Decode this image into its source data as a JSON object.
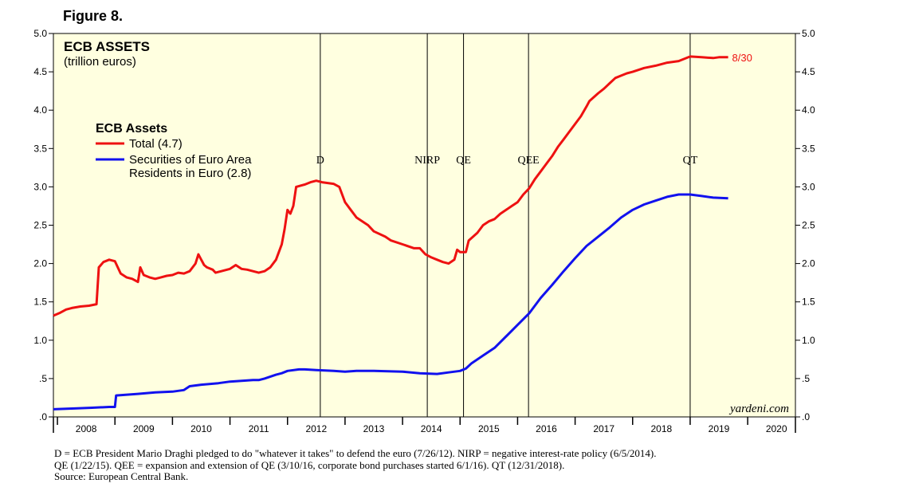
{
  "figure_label": "Figure 8.",
  "chart_data": {
    "type": "line",
    "title": "ECB ASSETS",
    "subtitle": "(trillion euros)",
    "legend_title": "ECB Assets",
    "legend_position": "upper-left",
    "xlabel": "",
    "ylabel": "",
    "ylim": [
      0,
      5.0
    ],
    "xlim": [
      2007.93,
      2020.83
    ],
    "y_ticks": [
      0,
      0.5,
      1.0,
      1.5,
      2.0,
      2.5,
      3.0,
      3.5,
      4.0,
      4.5,
      5.0
    ],
    "y_tick_labels": [
      ".0",
      ".5",
      "1.0",
      "1.5",
      "2.0",
      "2.5",
      "3.0",
      "3.5",
      "4.0",
      "4.5",
      "5.0"
    ],
    "x_tick_labels": [
      "2008",
      "2009",
      "2010",
      "2011",
      "2012",
      "2013",
      "2014",
      "2015",
      "2016",
      "2017",
      "2018",
      "2019",
      "2020"
    ],
    "background": "#ffffe0",
    "grid": false,
    "series": [
      {
        "name": "Total (4.7)",
        "color": "#ee1111",
        "end_label": "8/30",
        "points": [
          [
            2007.93,
            1.32
          ],
          [
            2008.05,
            1.36
          ],
          [
            2008.15,
            1.4
          ],
          [
            2008.25,
            1.42
          ],
          [
            2008.4,
            1.44
          ],
          [
            2008.55,
            1.45
          ],
          [
            2008.68,
            1.47
          ],
          [
            2008.72,
            1.95
          ],
          [
            2008.8,
            2.02
          ],
          [
            2008.9,
            2.05
          ],
          [
            2009.0,
            2.03
          ],
          [
            2009.1,
            1.87
          ],
          [
            2009.2,
            1.82
          ],
          [
            2009.3,
            1.8
          ],
          [
            2009.4,
            1.76
          ],
          [
            2009.44,
            1.95
          ],
          [
            2009.5,
            1.85
          ],
          [
            2009.6,
            1.82
          ],
          [
            2009.7,
            1.8
          ],
          [
            2009.8,
            1.82
          ],
          [
            2009.9,
            1.84
          ],
          [
            2010.0,
            1.85
          ],
          [
            2010.1,
            1.88
          ],
          [
            2010.2,
            1.87
          ],
          [
            2010.3,
            1.9
          ],
          [
            2010.4,
            2.0
          ],
          [
            2010.45,
            2.12
          ],
          [
            2010.5,
            2.05
          ],
          [
            2010.55,
            1.98
          ],
          [
            2010.6,
            1.95
          ],
          [
            2010.7,
            1.92
          ],
          [
            2010.75,
            1.88
          ],
          [
            2010.85,
            1.9
          ],
          [
            2011.0,
            1.93
          ],
          [
            2011.1,
            1.98
          ],
          [
            2011.2,
            1.93
          ],
          [
            2011.3,
            1.92
          ],
          [
            2011.4,
            1.9
          ],
          [
            2011.5,
            1.88
          ],
          [
            2011.6,
            1.9
          ],
          [
            2011.7,
            1.95
          ],
          [
            2011.8,
            2.05
          ],
          [
            2011.85,
            2.15
          ],
          [
            2011.9,
            2.25
          ],
          [
            2011.95,
            2.45
          ],
          [
            2012.0,
            2.7
          ],
          [
            2012.05,
            2.65
          ],
          [
            2012.1,
            2.75
          ],
          [
            2012.15,
            3.0
          ],
          [
            2012.3,
            3.03
          ],
          [
            2012.4,
            3.06
          ],
          [
            2012.5,
            3.08
          ],
          [
            2012.6,
            3.06
          ],
          [
            2012.8,
            3.04
          ],
          [
            2012.9,
            3.0
          ],
          [
            2013.0,
            2.8
          ],
          [
            2013.1,
            2.7
          ],
          [
            2013.2,
            2.6
          ],
          [
            2013.4,
            2.5
          ],
          [
            2013.5,
            2.42
          ],
          [
            2013.7,
            2.35
          ],
          [
            2013.8,
            2.3
          ],
          [
            2014.0,
            2.25
          ],
          [
            2014.2,
            2.2
          ],
          [
            2014.3,
            2.2
          ],
          [
            2014.4,
            2.12
          ],
          [
            2014.5,
            2.08
          ],
          [
            2014.6,
            2.05
          ],
          [
            2014.7,
            2.02
          ],
          [
            2014.8,
            2.0
          ],
          [
            2014.9,
            2.05
          ],
          [
            2014.95,
            2.18
          ],
          [
            2015.0,
            2.15
          ],
          [
            2015.1,
            2.15
          ],
          [
            2015.15,
            2.3
          ],
          [
            2015.3,
            2.4
          ],
          [
            2015.4,
            2.5
          ],
          [
            2015.5,
            2.55
          ],
          [
            2015.6,
            2.58
          ],
          [
            2015.7,
            2.65
          ],
          [
            2015.8,
            2.7
          ],
          [
            2015.9,
            2.75
          ],
          [
            2016.0,
            2.8
          ],
          [
            2016.1,
            2.9
          ],
          [
            2016.2,
            2.98
          ],
          [
            2016.3,
            3.1
          ],
          [
            2016.4,
            3.2
          ],
          [
            2016.5,
            3.3
          ],
          [
            2016.6,
            3.4
          ],
          [
            2016.7,
            3.52
          ],
          [
            2016.8,
            3.62
          ],
          [
            2016.9,
            3.72
          ],
          [
            2017.0,
            3.82
          ],
          [
            2017.1,
            3.92
          ],
          [
            2017.2,
            4.05
          ],
          [
            2017.25,
            4.12
          ],
          [
            2017.4,
            4.22
          ],
          [
            2017.5,
            4.28
          ],
          [
            2017.6,
            4.35
          ],
          [
            2017.7,
            4.42
          ],
          [
            2017.8,
            4.45
          ],
          [
            2017.9,
            4.48
          ],
          [
            2018.0,
            4.5
          ],
          [
            2018.2,
            4.55
          ],
          [
            2018.4,
            4.58
          ],
          [
            2018.6,
            4.62
          ],
          [
            2018.8,
            4.64
          ],
          [
            2019.0,
            4.7
          ],
          [
            2019.2,
            4.69
          ],
          [
            2019.4,
            4.68
          ],
          [
            2019.5,
            4.69
          ],
          [
            2019.66,
            4.69
          ]
        ]
      },
      {
        "name": "Securities of Euro Area Residents in Euro (2.8)",
        "label_lines": [
          "Securities of Euro Area",
          "Residents in Euro (2.8)"
        ],
        "color": "#1111ee",
        "points": [
          [
            2007.93,
            0.1
          ],
          [
            2008.3,
            0.11
          ],
          [
            2008.6,
            0.12
          ],
          [
            2008.9,
            0.13
          ],
          [
            2009.0,
            0.13
          ],
          [
            2009.02,
            0.28
          ],
          [
            2009.4,
            0.3
          ],
          [
            2009.7,
            0.32
          ],
          [
            2010.0,
            0.33
          ],
          [
            2010.2,
            0.35
          ],
          [
            2010.3,
            0.4
          ],
          [
            2010.5,
            0.42
          ],
          [
            2010.8,
            0.44
          ],
          [
            2011.0,
            0.46
          ],
          [
            2011.2,
            0.47
          ],
          [
            2011.4,
            0.48
          ],
          [
            2011.5,
            0.48
          ],
          [
            2011.6,
            0.5
          ],
          [
            2011.8,
            0.55
          ],
          [
            2011.9,
            0.57
          ],
          [
            2012.0,
            0.6
          ],
          [
            2012.2,
            0.62
          ],
          [
            2012.3,
            0.62
          ],
          [
            2012.5,
            0.61
          ],
          [
            2012.8,
            0.6
          ],
          [
            2013.0,
            0.59
          ],
          [
            2013.2,
            0.6
          ],
          [
            2013.5,
            0.6
          ],
          [
            2014.0,
            0.59
          ],
          [
            2014.3,
            0.57
          ],
          [
            2014.6,
            0.56
          ],
          [
            2014.8,
            0.58
          ],
          [
            2015.0,
            0.6
          ],
          [
            2015.1,
            0.63
          ],
          [
            2015.2,
            0.7
          ],
          [
            2015.4,
            0.8
          ],
          [
            2015.6,
            0.9
          ],
          [
            2015.8,
            1.05
          ],
          [
            2016.0,
            1.2
          ],
          [
            2016.2,
            1.35
          ],
          [
            2016.4,
            1.55
          ],
          [
            2016.6,
            1.72
          ],
          [
            2016.8,
            1.9
          ],
          [
            2017.0,
            2.07
          ],
          [
            2017.2,
            2.23
          ],
          [
            2017.4,
            2.35
          ],
          [
            2017.6,
            2.47
          ],
          [
            2017.8,
            2.6
          ],
          [
            2018.0,
            2.7
          ],
          [
            2018.2,
            2.77
          ],
          [
            2018.4,
            2.82
          ],
          [
            2018.6,
            2.87
          ],
          [
            2018.8,
            2.9
          ],
          [
            2019.0,
            2.9
          ],
          [
            2019.2,
            2.88
          ],
          [
            2019.4,
            2.86
          ],
          [
            2019.66,
            2.85
          ]
        ]
      }
    ],
    "events": [
      {
        "label": "D",
        "x": 2012.57
      },
      {
        "label": "NIRP",
        "x": 2014.43
      },
      {
        "label": "QE",
        "x": 2015.06
      },
      {
        "label": "QEE",
        "x": 2016.19
      },
      {
        "label": "QT",
        "x": 2019.0
      }
    ],
    "watermark": "yardeni.com"
  },
  "notes": [
    "D = ECB President Mario Draghi pledged to do \"whatever it takes\" to defend the euro (7/26/12). NIRP = negative interest-rate policy (6/5/2014).",
    "QE (1/22/15). QEE = expansion and extension of QE (3/10/16, corporate bond purchases started 6/1/16). QT (12/31/2018).",
    "Source: European Central Bank."
  ]
}
